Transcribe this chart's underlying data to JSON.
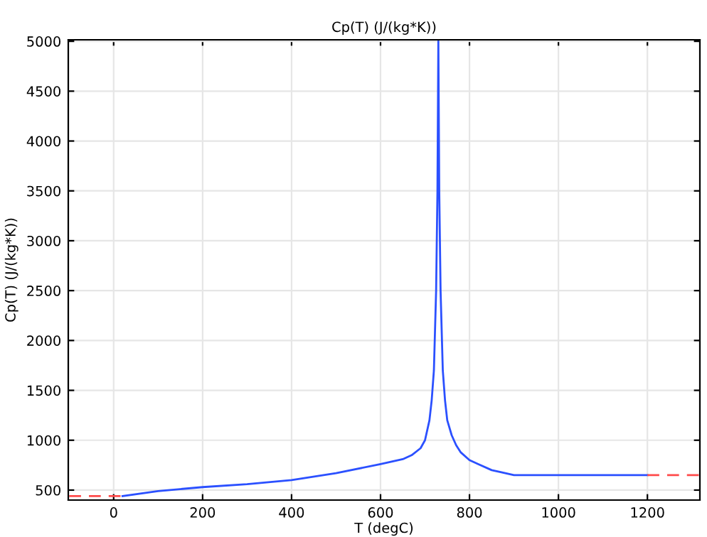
{
  "chart_data": {
    "type": "line",
    "title": "Cp(T) (J/(kg*K))",
    "xlabel": "T (degC)",
    "ylabel": "Cp(T) (J/(kg*K))",
    "series": [
      {
        "color": "#ff4b4b",
        "line_style": "dashed",
        "x": [
          -100,
          20
        ],
        "values": [
          440,
          440
        ]
      },
      {
        "color": "#2b50ff",
        "line_style": "solid",
        "x": [
          20,
          100,
          200,
          300,
          400,
          500,
          600,
          650,
          670,
          690,
          700,
          710,
          715,
          720,
          725,
          728,
          730,
          732,
          735,
          740,
          745,
          750,
          760,
          770,
          780,
          800,
          820,
          850,
          870,
          900,
          1200
        ],
        "values": [
          440,
          490,
          530,
          560,
          600,
          670,
          760,
          810,
          850,
          920,
          1000,
          1200,
          1400,
          1700,
          2500,
          3500,
          5000,
          3500,
          2500,
          1700,
          1400,
          1200,
          1050,
          950,
          880,
          800,
          760,
          700,
          680,
          650,
          650
        ]
      },
      {
        "color": "#ff4b4b",
        "line_style": "dashed",
        "x": [
          1200,
          1318
        ],
        "values": [
          650,
          650
        ]
      }
    ],
    "xlim": [
      -102,
      1318
    ],
    "ylim": [
      400,
      5015
    ],
    "xticks": [
      0,
      200,
      400,
      600,
      800,
      1000,
      1200
    ],
    "yticks": [
      500,
      1000,
      1500,
      2000,
      2500,
      3000,
      3500,
      4000,
      4500,
      5000
    ],
    "grid": true
  }
}
